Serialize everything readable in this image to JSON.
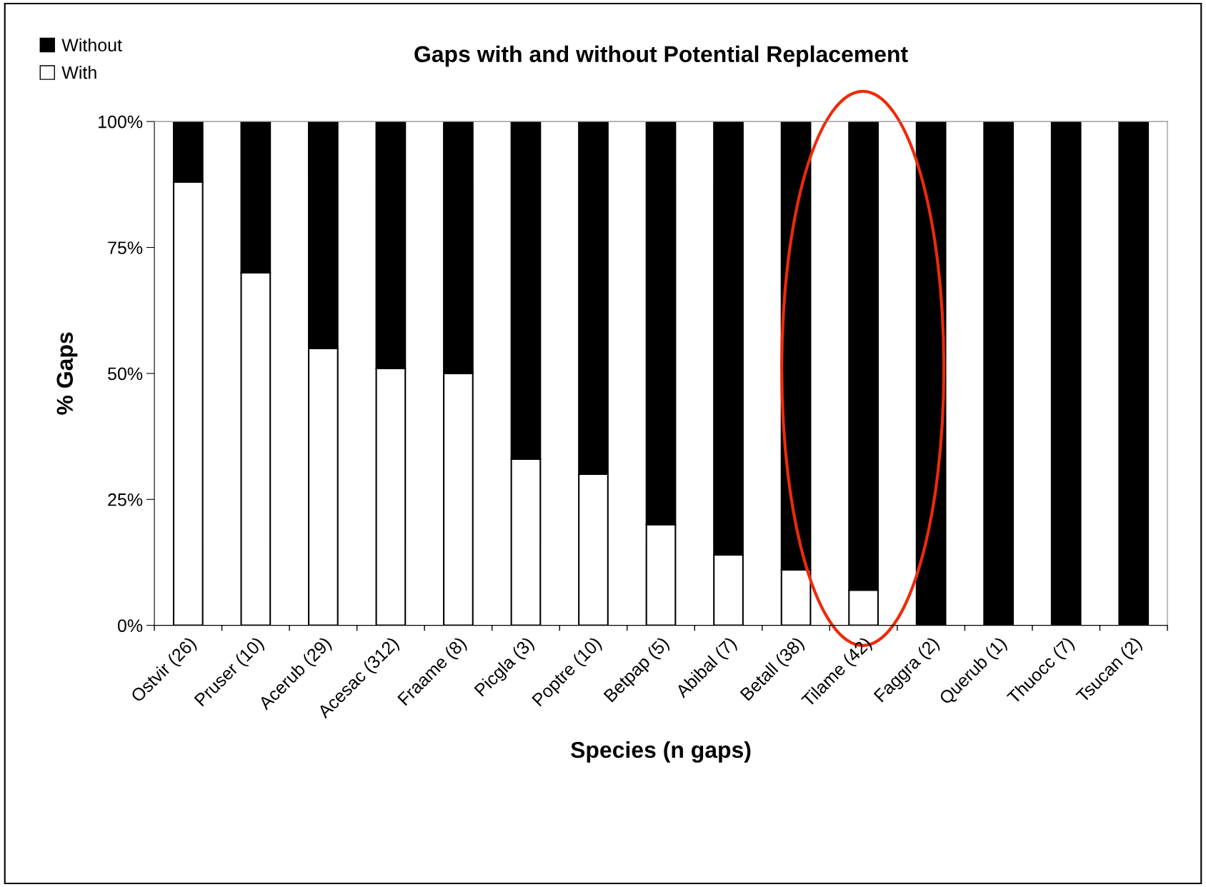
{
  "chart_data": {
    "type": "bar",
    "stacked": true,
    "title": "Gaps with and without Potential Replacement",
    "xlabel": "Species (n gaps)",
    "ylabel": "% Gaps",
    "categories": [
      "Ostvir (26)",
      "Pruser (10)",
      "Acerub (29)",
      "Acesac (312)",
      "Fraame (8)",
      "Picgla (3)",
      "Poptre (10)",
      "Betpap (5)",
      "Abibal (7)",
      "Betall (38)",
      "Tilame (42)",
      "Faggra (2)",
      "Querub (1)",
      "Thuocc (7)",
      "Tsucan (2)"
    ],
    "series": [
      {
        "name": "With",
        "color": "#ffffff",
        "values": [
          88,
          70,
          55,
          51,
          50,
          33,
          30,
          20,
          14,
          11,
          7,
          0,
          0,
          0,
          0
        ]
      },
      {
        "name": "Without",
        "color": "#000000",
        "values": [
          12,
          30,
          45,
          49,
          50,
          67,
          70,
          80,
          86,
          89,
          93,
          100,
          100,
          100,
          100
        ]
      }
    ],
    "ylim": [
      0,
      100
    ],
    "yticks": [
      {
        "value": 0,
        "label": "0%"
      },
      {
        "value": 25,
        "label": "25%"
      },
      {
        "value": 50,
        "label": "50%"
      },
      {
        "value": 75,
        "label": "75%"
      },
      {
        "value": 100,
        "label": "100%"
      }
    ],
    "grid": false,
    "legend": "top left"
  }
}
